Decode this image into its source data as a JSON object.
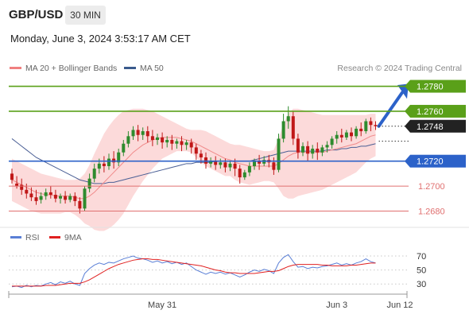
{
  "header": {
    "symbol": "GBP/USD",
    "timeframe": "30 MIN",
    "datetime": "Monday, June 3, 2024 3:53:17 AM CET"
  },
  "legend": {
    "items": [
      {
        "label": "MA 20 + Bollinger Bands",
        "color": "#f08080"
      },
      {
        "label": "MA 50",
        "color": "#3a5a8c"
      }
    ],
    "credit": "Research © 2024 Trading Central"
  },
  "chart_data": {
    "type": "candlestick",
    "price_panel": {
      "ylim": [
        1.2672,
        1.2788
      ],
      "levels": [
        {
          "value": 1.278,
          "label": "1.2780",
          "kind": "resistance",
          "color": "#5aa019"
        },
        {
          "value": 1.276,
          "label": "1.2760",
          "kind": "resistance",
          "color": "#5aa019"
        },
        {
          "value": 1.2748,
          "label": "1.2748",
          "kind": "last-price",
          "color": "#222222"
        },
        {
          "value": 1.272,
          "label": "1.2720",
          "kind": "pivot",
          "color": "#2c62c9"
        },
        {
          "value": 1.27,
          "label": "1.2700",
          "kind": "support",
          "color": "#e07070"
        },
        {
          "value": 1.268,
          "label": "1.2680",
          "kind": "support",
          "color": "#e07070"
        }
      ],
      "candles": [
        [
          1.271,
          1.2714,
          1.2705,
          1.2702
        ],
        [
          1.2702,
          1.2708,
          1.27,
          1.2698
        ],
        [
          1.2701,
          1.2706,
          1.2697,
          1.2693
        ],
        [
          1.2697,
          1.2702,
          1.2694,
          1.269
        ],
        [
          1.2694,
          1.2699,
          1.2691,
          1.2688
        ],
        [
          1.2691,
          1.2697,
          1.2688,
          1.2685
        ],
        [
          1.2689,
          1.2695,
          1.2692,
          1.2686
        ],
        [
          1.2692,
          1.2698,
          1.2695,
          1.2689
        ],
        [
          1.2695,
          1.27,
          1.2693,
          1.269
        ],
        [
          1.2693,
          1.2697,
          1.269,
          1.2687
        ],
        [
          1.269,
          1.2694,
          1.2692,
          1.2686
        ],
        [
          1.2692,
          1.2696,
          1.2689,
          1.2686
        ],
        [
          1.2689,
          1.2694,
          1.2692,
          1.2687
        ],
        [
          1.2692,
          1.2695,
          1.2688,
          1.2684
        ],
        [
          1.2688,
          1.2691,
          1.2682,
          1.2678
        ],
        [
          1.2682,
          1.27,
          1.2698,
          1.268
        ],
        [
          1.2698,
          1.271,
          1.2706,
          1.2695
        ],
        [
          1.2706,
          1.2718,
          1.2714,
          1.2703
        ],
        [
          1.2714,
          1.2722,
          1.2718,
          1.271
        ],
        [
          1.2718,
          1.2724,
          1.2716,
          1.2711
        ],
        [
          1.2716,
          1.2726,
          1.2722,
          1.2713
        ],
        [
          1.2722,
          1.2728,
          1.2719,
          1.2714
        ],
        [
          1.2719,
          1.273,
          1.2727,
          1.2716
        ],
        [
          1.2727,
          1.2737,
          1.2734,
          1.2724
        ],
        [
          1.2734,
          1.2744,
          1.274,
          1.2731
        ],
        [
          1.274,
          1.2748,
          1.2745,
          1.2737
        ],
        [
          1.2745,
          1.2749,
          1.2741,
          1.2736
        ],
        [
          1.2741,
          1.2747,
          1.2744,
          1.2737
        ],
        [
          1.2744,
          1.2748,
          1.274,
          1.2735
        ],
        [
          1.274,
          1.2745,
          1.2737,
          1.2732
        ],
        [
          1.2737,
          1.2742,
          1.2739,
          1.2733
        ],
        [
          1.2739,
          1.2743,
          1.2735,
          1.273
        ],
        [
          1.2735,
          1.274,
          1.2737,
          1.2731
        ],
        [
          1.2737,
          1.2741,
          1.2734,
          1.2729
        ],
        [
          1.2734,
          1.2738,
          1.2736,
          1.273
        ],
        [
          1.2736,
          1.274,
          1.2733,
          1.2728
        ],
        [
          1.2733,
          1.2737,
          1.2735,
          1.2729
        ],
        [
          1.2735,
          1.2738,
          1.2731,
          1.2726
        ],
        [
          1.2731,
          1.2734,
          1.2726,
          1.2721
        ],
        [
          1.2726,
          1.2729,
          1.2723,
          1.2718
        ],
        [
          1.2723,
          1.2727,
          1.2718,
          1.2714
        ],
        [
          1.2718,
          1.2723,
          1.272,
          1.2715
        ],
        [
          1.272,
          1.2724,
          1.2717,
          1.2713
        ],
        [
          1.2717,
          1.2722,
          1.2719,
          1.2714
        ],
        [
          1.2719,
          1.2722,
          1.2715,
          1.2711
        ],
        [
          1.2715,
          1.272,
          1.2718,
          1.2712
        ],
        [
          1.2718,
          1.2722,
          1.2714,
          1.2708
        ],
        [
          1.2714,
          1.2717,
          1.2707,
          1.2702
        ],
        [
          1.2707,
          1.2713,
          1.2711,
          1.2705
        ],
        [
          1.2711,
          1.2719,
          1.2716,
          1.2708
        ],
        [
          1.2716,
          1.2722,
          1.272,
          1.2713
        ],
        [
          1.272,
          1.2725,
          1.2718,
          1.2713
        ],
        [
          1.2718,
          1.2724,
          1.2721,
          1.2716
        ],
        [
          1.2721,
          1.2725,
          1.2719,
          1.2715
        ],
        [
          1.2719,
          1.2723,
          1.2713,
          1.2709
        ],
        [
          1.2713,
          1.2742,
          1.2738,
          1.2711
        ],
        [
          1.2738,
          1.2758,
          1.2752,
          1.2735
        ],
        [
          1.2752,
          1.2764,
          1.2756,
          1.2746
        ],
        [
          1.2756,
          1.276,
          1.2738,
          1.2733
        ],
        [
          1.2738,
          1.2742,
          1.2727,
          1.2722
        ],
        [
          1.2727,
          1.2735,
          1.2732,
          1.2724
        ],
        [
          1.2732,
          1.2736,
          1.2726,
          1.272
        ],
        [
          1.2726,
          1.2733,
          1.273,
          1.2722
        ],
        [
          1.273,
          1.2735,
          1.2727,
          1.2721
        ],
        [
          1.2727,
          1.2733,
          1.2731,
          1.2724
        ],
        [
          1.2731,
          1.2736,
          1.2733,
          1.2727
        ],
        [
          1.2733,
          1.274,
          1.2738,
          1.273
        ],
        [
          1.2738,
          1.2744,
          1.2741,
          1.2734
        ],
        [
          1.2741,
          1.2746,
          1.2739,
          1.2735
        ],
        [
          1.2739,
          1.2745,
          1.2743,
          1.2737
        ],
        [
          1.2743,
          1.2747,
          1.274,
          1.2736
        ],
        [
          1.274,
          1.2748,
          1.2746,
          1.2738
        ],
        [
          1.2746,
          1.2751,
          1.2744,
          1.274
        ],
        [
          1.2744,
          1.2754,
          1.2752,
          1.2742
        ],
        [
          1.2752,
          1.2755,
          1.2749,
          1.2744
        ],
        [
          1.2749,
          1.2752,
          1.2748,
          1.2745
        ]
      ],
      "ma20": [
        1.2705,
        1.2703,
        1.2701,
        1.2699,
        1.2697,
        1.2695,
        1.2694,
        1.2693,
        1.2693,
        1.2692,
        1.2692,
        1.2692,
        1.2692,
        1.2691,
        1.269,
        1.269,
        1.2692,
        1.2695,
        1.2699,
        1.2703,
        1.2707,
        1.2711,
        1.2715,
        1.2719,
        1.2723,
        1.2727,
        1.273,
        1.2733,
        1.2735,
        1.2737,
        1.2738,
        1.2739,
        1.2739,
        1.2739,
        1.2739,
        1.2738,
        1.2737,
        1.2736,
        1.2734,
        1.2732,
        1.273,
        1.2728,
        1.2726,
        1.2724,
        1.2722,
        1.2721,
        1.2719,
        1.2718,
        1.2717,
        1.2716,
        1.2716,
        1.2716,
        1.2716,
        1.2716,
        1.2716,
        1.2718,
        1.2721,
        1.2724,
        1.2726,
        1.2727,
        1.2727,
        1.2727,
        1.2727,
        1.2727,
        1.2727,
        1.2728,
        1.2729,
        1.273,
        1.2731,
        1.2732,
        1.2733,
        1.2734,
        1.2736,
        1.2738,
        1.274,
        1.2741
      ],
      "bb_upper": [
        1.2722,
        1.272,
        1.2718,
        1.2716,
        1.2714,
        1.2712,
        1.271,
        1.2709,
        1.2708,
        1.2707,
        1.2706,
        1.2705,
        1.2705,
        1.2705,
        1.2706,
        1.271,
        1.2717,
        1.2726,
        1.2734,
        1.2742,
        1.2748,
        1.2753,
        1.2757,
        1.276,
        1.2761,
        1.2762,
        1.2762,
        1.2762,
        1.2761,
        1.276,
        1.2758,
        1.2756,
        1.2754,
        1.2752,
        1.275,
        1.2748,
        1.2746,
        1.2745,
        1.2745,
        1.2745,
        1.2744,
        1.2742,
        1.274,
        1.2738,
        1.2736,
        1.2734,
        1.2733,
        1.2733,
        1.2732,
        1.2731,
        1.273,
        1.2729,
        1.2728,
        1.2728,
        1.2729,
        1.2738,
        1.275,
        1.2758,
        1.2762,
        1.2762,
        1.2761,
        1.276,
        1.2759,
        1.2758,
        1.2757,
        1.2757,
        1.2757,
        1.2757,
        1.2757,
        1.2757,
        1.2757,
        1.2757,
        1.2757,
        1.2757,
        1.2758,
        1.2758
      ],
      "bb_lower": [
        1.2688,
        1.2686,
        1.2684,
        1.2682,
        1.268,
        1.2679,
        1.2678,
        1.2678,
        1.2678,
        1.2678,
        1.2678,
        1.2679,
        1.2679,
        1.2677,
        1.2674,
        1.267,
        1.2668,
        1.2665,
        1.2664,
        1.2664,
        1.2666,
        1.2669,
        1.2673,
        1.2678,
        1.2685,
        1.2692,
        1.2698,
        1.2704,
        1.2709,
        1.2714,
        1.2718,
        1.2722,
        1.2724,
        1.2726,
        1.2728,
        1.2728,
        1.2728,
        1.2727,
        1.2723,
        1.2719,
        1.2716,
        1.2714,
        1.2712,
        1.271,
        1.2708,
        1.2708,
        1.2705,
        1.2703,
        1.2702,
        1.2701,
        1.2702,
        1.2703,
        1.2704,
        1.2704,
        1.2703,
        1.2698,
        1.2692,
        1.269,
        1.269,
        1.2692,
        1.2693,
        1.2694,
        1.2695,
        1.2696,
        1.2697,
        1.2699,
        1.2701,
        1.2703,
        1.2705,
        1.2707,
        1.2709,
        1.2711,
        1.2715,
        1.2719,
        1.2722,
        1.2724
      ],
      "ma50": [
        1.2738,
        1.2735,
        1.2732,
        1.2729,
        1.2726,
        1.2723,
        1.2721,
        1.2719,
        1.2717,
        1.2715,
        1.2713,
        1.2711,
        1.2709,
        1.2707,
        1.2705,
        1.2704,
        1.2703,
        1.2702,
        1.2702,
        1.2702,
        1.2703,
        1.2703,
        1.2704,
        1.2705,
        1.2706,
        1.2707,
        1.2708,
        1.2709,
        1.271,
        1.2711,
        1.2712,
        1.2713,
        1.2714,
        1.2715,
        1.2716,
        1.2717,
        1.2718,
        1.2718,
        1.2719,
        1.2719,
        1.2719,
        1.2719,
        1.272,
        1.272,
        1.272,
        1.272,
        1.272,
        1.272,
        1.272,
        1.272,
        1.2721,
        1.2722,
        1.2723,
        1.2724,
        1.2725,
        1.2726,
        1.2727,
        1.2728,
        1.2728,
        1.2728,
        1.2728,
        1.2728,
        1.2728,
        1.2728,
        1.2728,
        1.2729,
        1.2729,
        1.2729,
        1.273,
        1.273,
        1.2731,
        1.2731,
        1.2732,
        1.2732,
        1.2733,
        1.2734
      ]
    },
    "rsi_panel": {
      "ylim": [
        20,
        78
      ],
      "ticks": [
        {
          "value": 70,
          "label": "70"
        },
        {
          "value": 50,
          "label": "50"
        },
        {
          "value": 30,
          "label": "30"
        }
      ],
      "legend": [
        {
          "label": "RSI",
          "color": "#5a7fd6"
        },
        {
          "label": "9MA",
          "color": "#e02020"
        }
      ],
      "rsi": [
        26,
        27,
        25,
        28,
        26,
        28,
        27,
        30,
        32,
        29,
        33,
        31,
        34,
        30,
        28,
        45,
        52,
        57,
        60,
        58,
        61,
        60,
        63,
        66,
        68,
        70,
        67,
        66,
        64,
        61,
        63,
        60,
        62,
        59,
        61,
        58,
        60,
        55,
        50,
        47,
        44,
        47,
        45,
        47,
        44,
        46,
        43,
        40,
        43,
        47,
        50,
        48,
        51,
        49,
        45,
        60,
        68,
        72,
        62,
        54,
        55,
        52,
        54,
        53,
        55,
        56,
        58,
        60,
        57,
        59,
        57,
        60,
        62,
        66,
        62,
        60
      ],
      "rsi_ma9": [
        27,
        27,
        27,
        27,
        27,
        27,
        27,
        28,
        28,
        28,
        29,
        30,
        31,
        31,
        31,
        33,
        36,
        40,
        44,
        48,
        52,
        55,
        58,
        60,
        62,
        64,
        65,
        66,
        66,
        65,
        65,
        64,
        63,
        62,
        61,
        60,
        59,
        58,
        57,
        56,
        54,
        52,
        50,
        49,
        47,
        46,
        46,
        45,
        45,
        45,
        45,
        46,
        47,
        48,
        48,
        49,
        52,
        55,
        57,
        58,
        58,
        58,
        58,
        58,
        57,
        57,
        56,
        56,
        56,
        56,
        57,
        57,
        58,
        59,
        60,
        60
      ]
    },
    "x_axis": {
      "ticks": [
        {
          "label": "May 31",
          "index": 31
        },
        {
          "label": "Jun 3",
          "index": 67
        },
        {
          "label": "Jun 12",
          "index": 80
        }
      ]
    }
  }
}
